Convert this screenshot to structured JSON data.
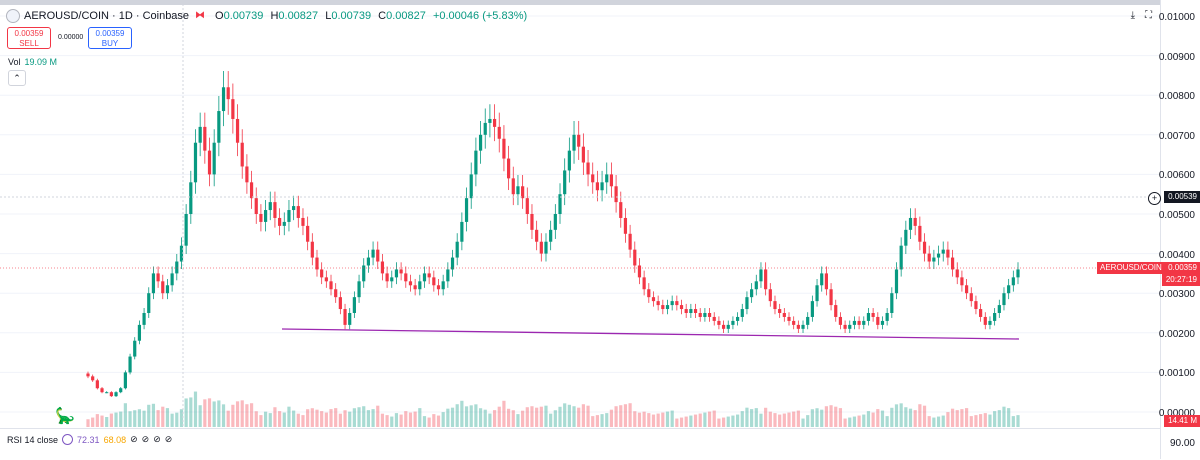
{
  "header": {
    "symbol": "AEROUSD/COIN · 1D · Coinbase",
    "ohlc": [
      {
        "key": "O",
        "value": "0.00739"
      },
      {
        "key": "H",
        "value": "0.00827"
      },
      {
        "key": "L",
        "value": "0.00739"
      },
      {
        "key": "C",
        "value": "0.00827"
      }
    ],
    "change": "+0.00046 (+5.83%)"
  },
  "trade": {
    "sell_price": "0.00359",
    "sell_label": "SELL",
    "spread": "0.00000",
    "buy_price": "0.00359",
    "buy_label": "BUY"
  },
  "volume": {
    "label": "Vol",
    "value": "19.09 M"
  },
  "tools": {
    "download_icon": "download-icon",
    "fullscreen_icon": "fullscreen-icon"
  },
  "price_axis": [
    "0.01000",
    "0.00900",
    "0.00800",
    "0.00700",
    "0.00600",
    "0.00500",
    "0.00400",
    "0.00300",
    "0.00200",
    "0.00100",
    "0.00000"
  ],
  "crosshair_price": "0.00539",
  "last_price_tag": {
    "symbol": "AEROUSD/COIN",
    "price": "0.00359",
    "countdown": "20:27:19"
  },
  "volume_tag": "14.41 M",
  "rsi": {
    "label": "RSI 14 close",
    "value1": "72.31",
    "value2": "68.08",
    "axis_value": "90.00",
    "hidden_icons": [
      "hidden-icon",
      "hidden-icon",
      "hidden-icon",
      "hidden-icon"
    ]
  },
  "colors": {
    "up": "#089981",
    "down": "#f23645",
    "trendline": "#9c27b0",
    "rsi": "#7e57c2"
  },
  "chart_data": {
    "type": "candlestick",
    "ylim": [
      0,
      0.01
    ],
    "closes": [
      0.0009,
      0.0008,
      0.0006,
      0.0005,
      0.0005,
      0.0004,
      0.0005,
      0.0006,
      0.001,
      0.0014,
      0.0018,
      0.0022,
      0.0025,
      0.003,
      0.0035,
      0.0033,
      0.003,
      0.0032,
      0.0035,
      0.0038,
      0.0042,
      0.005,
      0.0058,
      0.0068,
      0.0072,
      0.0066,
      0.006,
      0.0068,
      0.0076,
      0.0082,
      0.0079,
      0.0074,
      0.0068,
      0.0062,
      0.0058,
      0.0054,
      0.005,
      0.0048,
      0.0051,
      0.0053,
      0.0049,
      0.0047,
      0.0048,
      0.0051,
      0.0052,
      0.0049,
      0.0047,
      0.0043,
      0.0039,
      0.0036,
      0.0034,
      0.0033,
      0.0031,
      0.0029,
      0.0026,
      0.0022,
      0.0025,
      0.0029,
      0.0033,
      0.0037,
      0.0039,
      0.0041,
      0.0038,
      0.0035,
      0.0033,
      0.0034,
      0.0036,
      0.0035,
      0.0033,
      0.0032,
      0.0031,
      0.0033,
      0.0035,
      0.0034,
      0.0032,
      0.0031,
      0.0033,
      0.0036,
      0.0039,
      0.0043,
      0.0048,
      0.0054,
      0.006,
      0.0066,
      0.007,
      0.0073,
      0.0074,
      0.0072,
      0.0069,
      0.0064,
      0.0059,
      0.0055,
      0.0057,
      0.0054,
      0.005,
      0.0046,
      0.0043,
      0.004,
      0.0043,
      0.0046,
      0.005,
      0.0055,
      0.0061,
      0.0066,
      0.007,
      0.0067,
      0.0063,
      0.006,
      0.0058,
      0.0056,
      0.0058,
      0.006,
      0.0057,
      0.0053,
      0.0049,
      0.0045,
      0.0041,
      0.0037,
      0.0034,
      0.0031,
      0.0029,
      0.0028,
      0.0027,
      0.0026,
      0.0027,
      0.0028,
      0.0027,
      0.0026,
      0.0025,
      0.0026,
      0.0025,
      0.0024,
      0.0025,
      0.0024,
      0.0023,
      0.0022,
      0.0021,
      0.0022,
      0.0023,
      0.0024,
      0.0026,
      0.0029,
      0.0031,
      0.0033,
      0.0036,
      0.0031,
      0.0028,
      0.0026,
      0.0025,
      0.0024,
      0.0023,
      0.0022,
      0.0021,
      0.0022,
      0.0024,
      0.0028,
      0.0032,
      0.0035,
      0.0031,
      0.0027,
      0.0024,
      0.0022,
      0.0021,
      0.0022,
      0.0023,
      0.0022,
      0.0023,
      0.0025,
      0.0024,
      0.0022,
      0.0023,
      0.0025,
      0.003,
      0.0036,
      0.0042,
      0.0046,
      0.0049,
      0.0047,
      0.0043,
      0.004,
      0.0038,
      0.0039,
      0.004,
      0.0041,
      0.0039,
      0.0036,
      0.0034,
      0.0032,
      0.003,
      0.0028,
      0.0026,
      0.0024,
      0.0022,
      0.0023,
      0.0025,
      0.0027,
      0.003,
      0.0032,
      0.0034,
      0.0036
    ]
  }
}
